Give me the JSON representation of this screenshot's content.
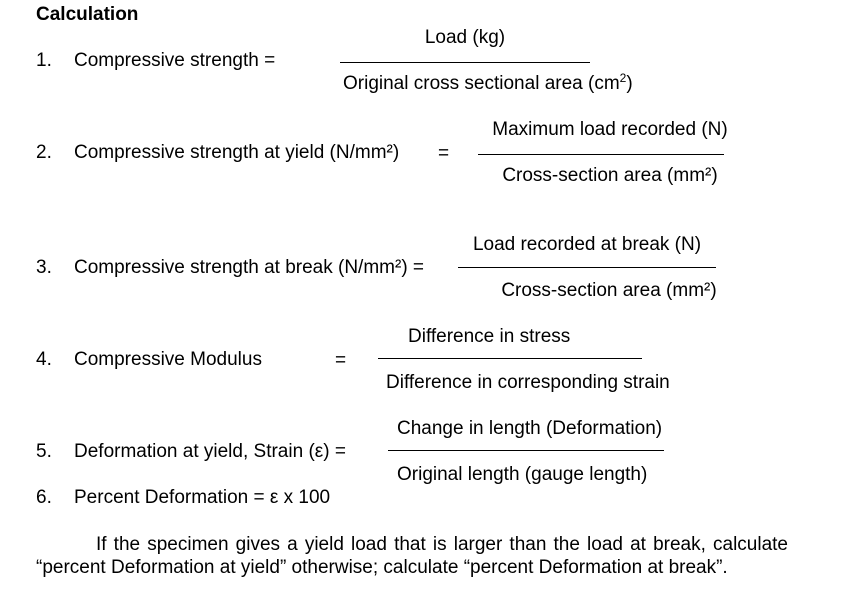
{
  "heading": "Calculation",
  "formulas": [
    {
      "number": "1.",
      "label": "Compressive strength =",
      "equals": "",
      "numerator": "Load (kg)",
      "denominator_text": "Original cross sectional area (cm",
      "denominator_sup": "2",
      "denominator_close": ")"
    },
    {
      "number": "2.",
      "label": "Compressive strength at yield (N/mm²)",
      "equals": "=",
      "numerator": "Maximum load recorded (N)",
      "denominator": "Cross-section area (mm²)"
    },
    {
      "number": "3.",
      "label": "Compressive strength at break (N/mm²) =",
      "equals": "",
      "numerator": "Load recorded at break (N)",
      "denominator": "Cross-section area (mm²)"
    },
    {
      "number": "4.",
      "label": "Compressive Modulus",
      "equals": "=",
      "numerator": "Difference in stress",
      "denominator": "Difference in corresponding strain"
    },
    {
      "number": "5.",
      "label": "Deformation at yield, Strain (ε) =",
      "equals": "",
      "numerator": "Change in length (Deformation)",
      "denominator": "Original length (gauge length)"
    },
    {
      "number": "6.",
      "label": "Percent Deformation = ε x 100"
    }
  ],
  "note": "If the specimen gives a yield load that is larger than the load at break, calculate “percent Deformation at yield” otherwise; calculate “percent Deformation at break”."
}
